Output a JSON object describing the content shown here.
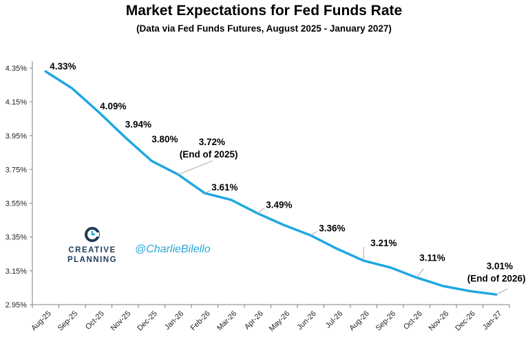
{
  "chart_data": {
    "type": "line",
    "title": "Market Expectations for Fed Funds Rate",
    "subtitle": "(Data via Fed Funds Futures, August 2025 - January 2027)",
    "categories": [
      "Aug-25",
      "Sep-25",
      "Oct-25",
      "Nov-25",
      "Dec-25",
      "Jan-26",
      "Feb-26",
      "Mar-26",
      "Apr-26",
      "May-26",
      "Jun-26",
      "Jul-26",
      "Aug-26",
      "Sep-26",
      "Oct-26",
      "Nov-26",
      "Dec-26",
      "Jan-27"
    ],
    "values": [
      4.33,
      4.23,
      4.09,
      3.94,
      3.8,
      3.72,
      3.61,
      3.57,
      3.49,
      3.42,
      3.36,
      3.28,
      3.21,
      3.17,
      3.11,
      3.06,
      3.03,
      3.01
    ],
    "yticks": [
      "4.35%",
      "4.15%",
      "3.95%",
      "3.75%",
      "3.55%",
      "3.35%",
      "3.15%",
      "2.95%"
    ],
    "ylim": [
      2.95,
      4.35
    ],
    "grid": false,
    "line_color": "#1fa7e1",
    "annotations": [
      {
        "index": 0,
        "text": "4.33%"
      },
      {
        "index": 2,
        "text": "4.09%"
      },
      {
        "index": 3,
        "text": "3.94%"
      },
      {
        "index": 4,
        "text": "3.80%"
      },
      {
        "index": 5,
        "text": "3.72%",
        "text2": "(End of 2025)"
      },
      {
        "index": 6,
        "text": "3.61%"
      },
      {
        "index": 8,
        "text": "3.49%"
      },
      {
        "index": 10,
        "text": "3.36%"
      },
      {
        "index": 12,
        "text": "3.21%"
      },
      {
        "index": 14,
        "text": "3.11%"
      },
      {
        "index": 17,
        "text": "3.01%",
        "text2": "(End of 2026)"
      }
    ]
  },
  "branding": {
    "logo_icon": "creative-planning-c-icon",
    "logo_line1": "CREATIVE",
    "logo_line2": "PLANNING",
    "handle": "@CharlieBilello"
  }
}
